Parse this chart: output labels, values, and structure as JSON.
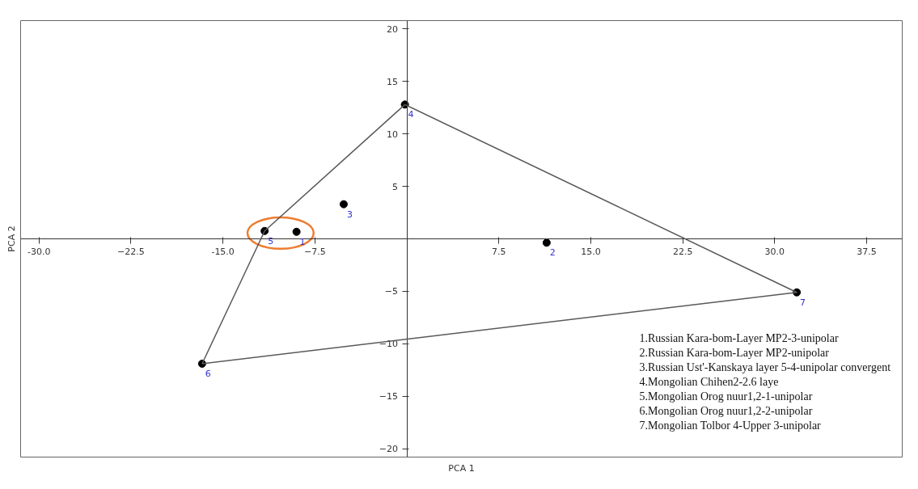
{
  "chart_data": {
    "type": "scatter",
    "xlabel": "PCA 1",
    "ylabel": "PCA 2",
    "xlim": [
      -31.5,
      40.4
    ],
    "ylim": [
      -20.8,
      20.8
    ],
    "xticks": [
      {
        "value": -30,
        "label": "-30.0"
      },
      -22.5,
      {
        "value": -15,
        "label": "-15.0"
      },
      -7.5,
      7.5,
      {
        "value": 15,
        "label": "15.0"
      },
      22.5,
      {
        "value": 30,
        "label": "30.0"
      },
      37.5
    ],
    "yticks": [
      -20,
      -15,
      -10,
      -5,
      5,
      10,
      15,
      20
    ],
    "grid": false,
    "marker": "circle",
    "series": [
      {
        "type": "line",
        "marker": "none",
        "line_style": "solid",
        "color": "#595959",
        "x": [
          -0.16,
          31.8,
          -16.7
        ],
        "values": [
          12.8,
          -5.1,
          -11.9
        ]
      },
      {
        "type": "line",
        "marker": "none",
        "line_style": "solid",
        "color": "#595959",
        "x": [
          -16.7,
          -11.6,
          -0.16
        ],
        "values": [
          -11.9,
          0.75,
          12.8
        ]
      },
      {
        "color": "#000000",
        "x": [
          -9.0,
          11.4,
          -5.15,
          -0.16,
          -11.6,
          -16.7,
          31.8
        ],
        "values": [
          0.67,
          -0.37,
          3.3,
          12.8,
          0.75,
          -11.9,
          -5.1
        ]
      }
    ],
    "annotations": [
      {
        "text": "1",
        "x": -9.0,
        "y": 0.67
      },
      {
        "text": "2",
        "x": 11.4,
        "y": -0.37
      },
      {
        "text": "3",
        "x": -5.15,
        "y": 3.3
      },
      {
        "text": "4",
        "x": -0.16,
        "y": 12.8
      },
      {
        "text": "5",
        "x": -11.6,
        "y": 0.75
      },
      {
        "text": "6",
        "x": -16.7,
        "y": -11.9
      },
      {
        "text": "7",
        "x": 31.8,
        "y": -5.1
      },
      "1.Russian Kara-bom-Layer MP2-3-unipolar",
      "2.Russian Kara-bom-Layer MP2-unipolar",
      "3.Russian Ust'-Kanskaya layer 5-4-unipolar convergent",
      "4.Mongolian Chihen2-2.6 laye",
      "5.Mongolian Orog nuur1,2-1-unipolar",
      "6.Mongolian Orog nuur1,2-2-unipolar",
      "7.Mongolian Tolbor 4-Upper 3-unipolar"
    ]
  }
}
